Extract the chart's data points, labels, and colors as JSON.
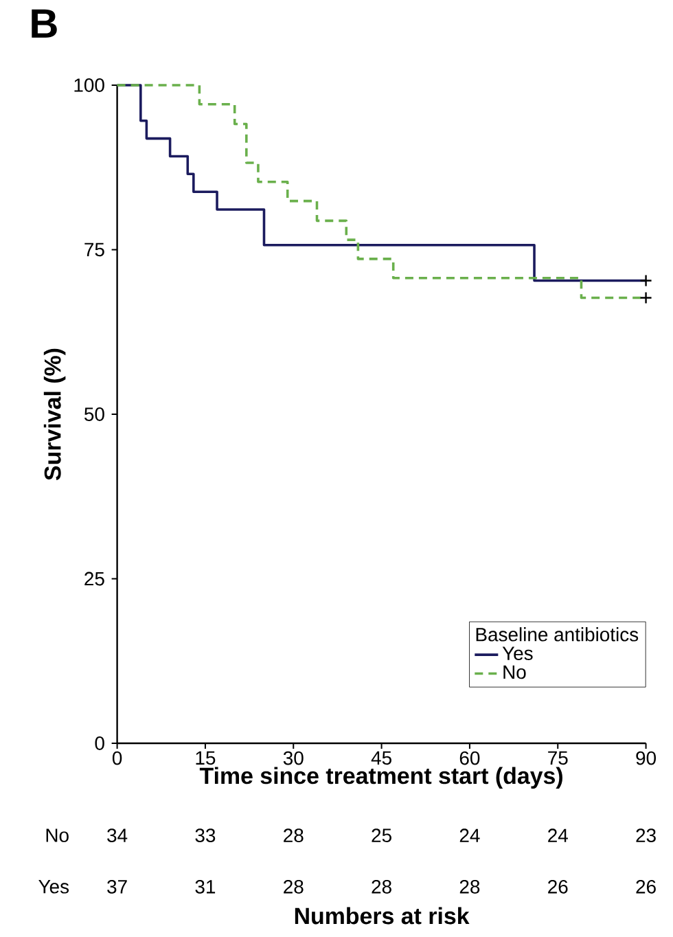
{
  "chart_data": {
    "type": "step",
    "title": "B",
    "xlabel": "Time since treatment start (days)",
    "ylabel": "Survival (%)",
    "legend_title": "Baseline antibiotics",
    "legend": "bottom right",
    "xlim": [
      0,
      90
    ],
    "xticks": [
      0,
      15,
      30,
      45,
      60,
      75,
      90
    ],
    "ylim": [
      0,
      100
    ],
    "yticks": [
      0,
      25,
      50,
      75,
      100
    ],
    "series": [
      {
        "name": "Yes",
        "color": "#1b1b5e",
        "line_style": "solid",
        "x": [
          0,
          4,
          5,
          9,
          12,
          13,
          17,
          25,
          71,
          90
        ],
        "values": [
          100,
          94.6,
          91.9,
          89.2,
          86.5,
          83.8,
          81.1,
          75.7,
          70.3,
          70.3
        ]
      },
      {
        "name": "No",
        "color": "#6ab04c",
        "line_style": "dashed",
        "x": [
          0,
          14,
          20,
          22,
          24,
          29,
          34,
          39,
          41,
          47,
          79,
          90
        ],
        "values": [
          100,
          97.1,
          94.1,
          88.2,
          85.3,
          82.4,
          79.4,
          76.5,
          73.6,
          70.7,
          67.7,
          67.7
        ]
      },
      {
        "type": "scatter",
        "color": "#000000",
        "marker": "cross",
        "x": [
          90,
          90
        ],
        "values": [
          70.3,
          67.7
        ]
      }
    ],
    "annotations": [
      "No",
      "34",
      "33",
      "28",
      "25",
      "24",
      "24",
      "23",
      "Yes",
      "37",
      "31",
      "28",
      "28",
      "28",
      "26",
      "26",
      "Numbers at risk"
    ]
  }
}
